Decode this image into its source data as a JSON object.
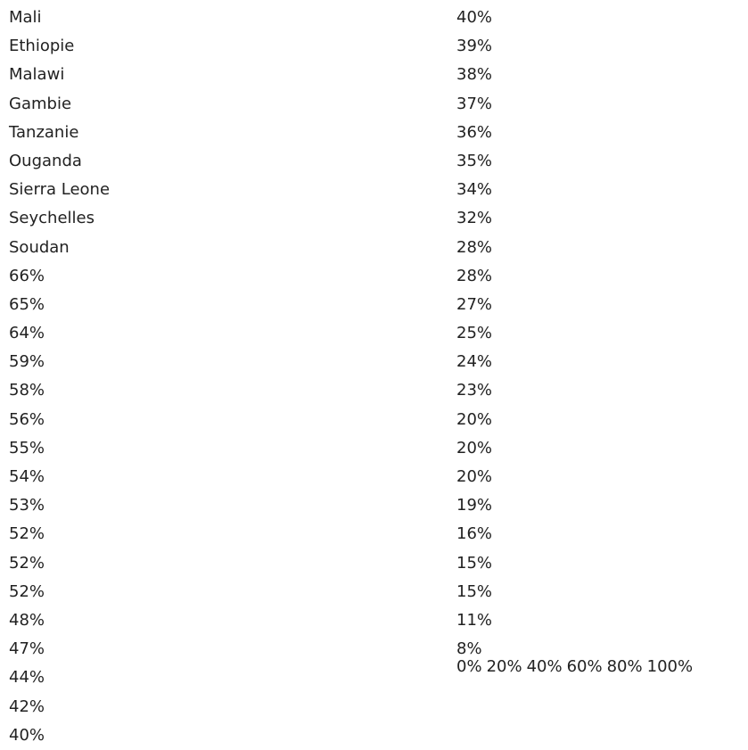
{
  "left_column": [
    "Mali",
    "Ethiopie",
    "Malawi",
    "Gambie",
    "Tanzanie",
    "Ouganda",
    "Sierra Leone",
    "Seychelles",
    "Soudan",
    "66%",
    "65%",
    "64%",
    "59%",
    "58%",
    "56%",
    "55%",
    "54%",
    "53%",
    "52%",
    "52%",
    "52%",
    "48%",
    "47%",
    "44%",
    "42%",
    "40%"
  ],
  "right_column": [
    "40%",
    "39%",
    "38%",
    "37%",
    "36%",
    "35%",
    "34%",
    "32%",
    "28%",
    "28%",
    "27%",
    "25%",
    "24%",
    "23%",
    "20%",
    "20%",
    "20%",
    "19%",
    "16%",
    "15%",
    "15%",
    "11%",
    "8%"
  ],
  "axis_labels": [
    "0%",
    "20%",
    "40%",
    "60%",
    "80%",
    "100%"
  ]
}
